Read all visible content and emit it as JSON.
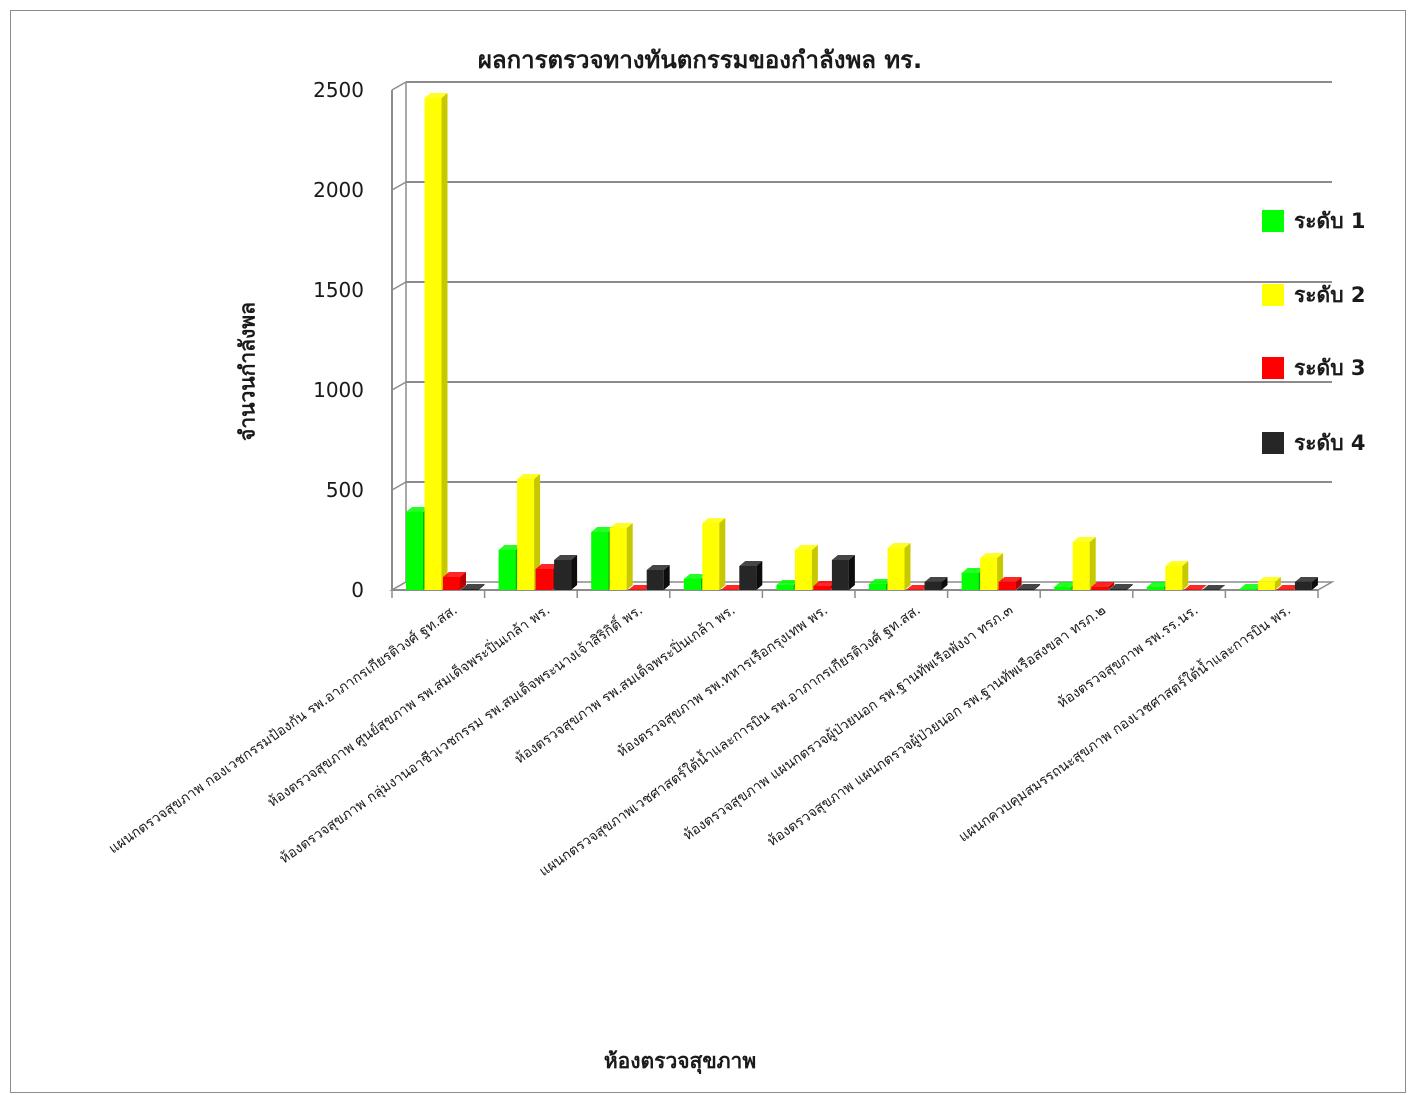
{
  "chart_data": {
    "type": "bar",
    "title": "ผลการตรวจทางทันตกรรมของกำลังพล ทร.",
    "xlabel": "ห้องตรวจสุขภาพ",
    "ylabel": "จำนวนกำลังพล",
    "ylim": [
      0,
      2500
    ],
    "yticks": [
      0,
      500,
      1000,
      1500,
      2000,
      2500
    ],
    "grid": true,
    "legend_position": "right",
    "categories": [
      "แผนกตรวจสุขภาพ กองเวชกรรมป้องกัน รพ.อาภากรเกียรติวงศ์ ฐท.สส.",
      "ห้องตรวจสุขภาพ ศูนย์สุขภาพ รพ.สมเด็จพระปิ่นเกล้า พร.",
      "ห้องตรวจสุขภาพ กลุ่มงานอาชีวเวชกรรม รพ.สมเด็จพระนางเจ้าสิริกิติ์ พร.",
      "ห้องตรวจสุขภาพ รพ.สมเด็จพระปิ่นเกล้า พร.",
      "ห้องตรวจสุขภาพ รพ.ทหารเรือกรุงเทพ พร.",
      "แผนกตรวจสุขภาพเวชศาสตร์ใต้น้ำและการบิน รพ.อาภากรเกียรติวงศ์ ฐท.สส.",
      "ห้องตรวจสุขภาพ แผนกตรวจผู้ป่วยนอก รพ.ฐานทัพเรือพังงา ทรภ.๓",
      "ห้องตรวจสุขภาพ แผนกตรวจผู้ป่วยนอก รพ.ฐานทัพเรือสงขลา ทรภ.๒",
      "ห้องตรวจสุขภาพ รพ.รร.นร.",
      "แผนกควบคุมสมรรถนะสุขภาพ กองเวชศาสตร์ใต้น้ำและการบิน พร."
    ],
    "series": [
      {
        "name": "ระดับ 1",
        "color": "#00ff00",
        "side": "#00b800",
        "values": [
          390,
          200,
          290,
          55,
          25,
          30,
          85,
          15,
          15,
          5
        ]
      },
      {
        "name": "ระดับ 2",
        "color": "#ffff00",
        "side": "#c8c800",
        "values": [
          2460,
          555,
          310,
          335,
          200,
          210,
          160,
          240,
          120,
          40
        ]
      },
      {
        "name": "ระดับ 3",
        "color": "#ff0000",
        "side": "#b80000",
        "values": [
          65,
          105,
          0,
          0,
          20,
          0,
          40,
          15,
          0,
          0
        ]
      },
      {
        "name": "ระดับ 4",
        "color": "#262626",
        "side": "#0d0d0d",
        "values": [
          5,
          150,
          100,
          120,
          150,
          40,
          5,
          5,
          0,
          40
        ]
      }
    ]
  }
}
